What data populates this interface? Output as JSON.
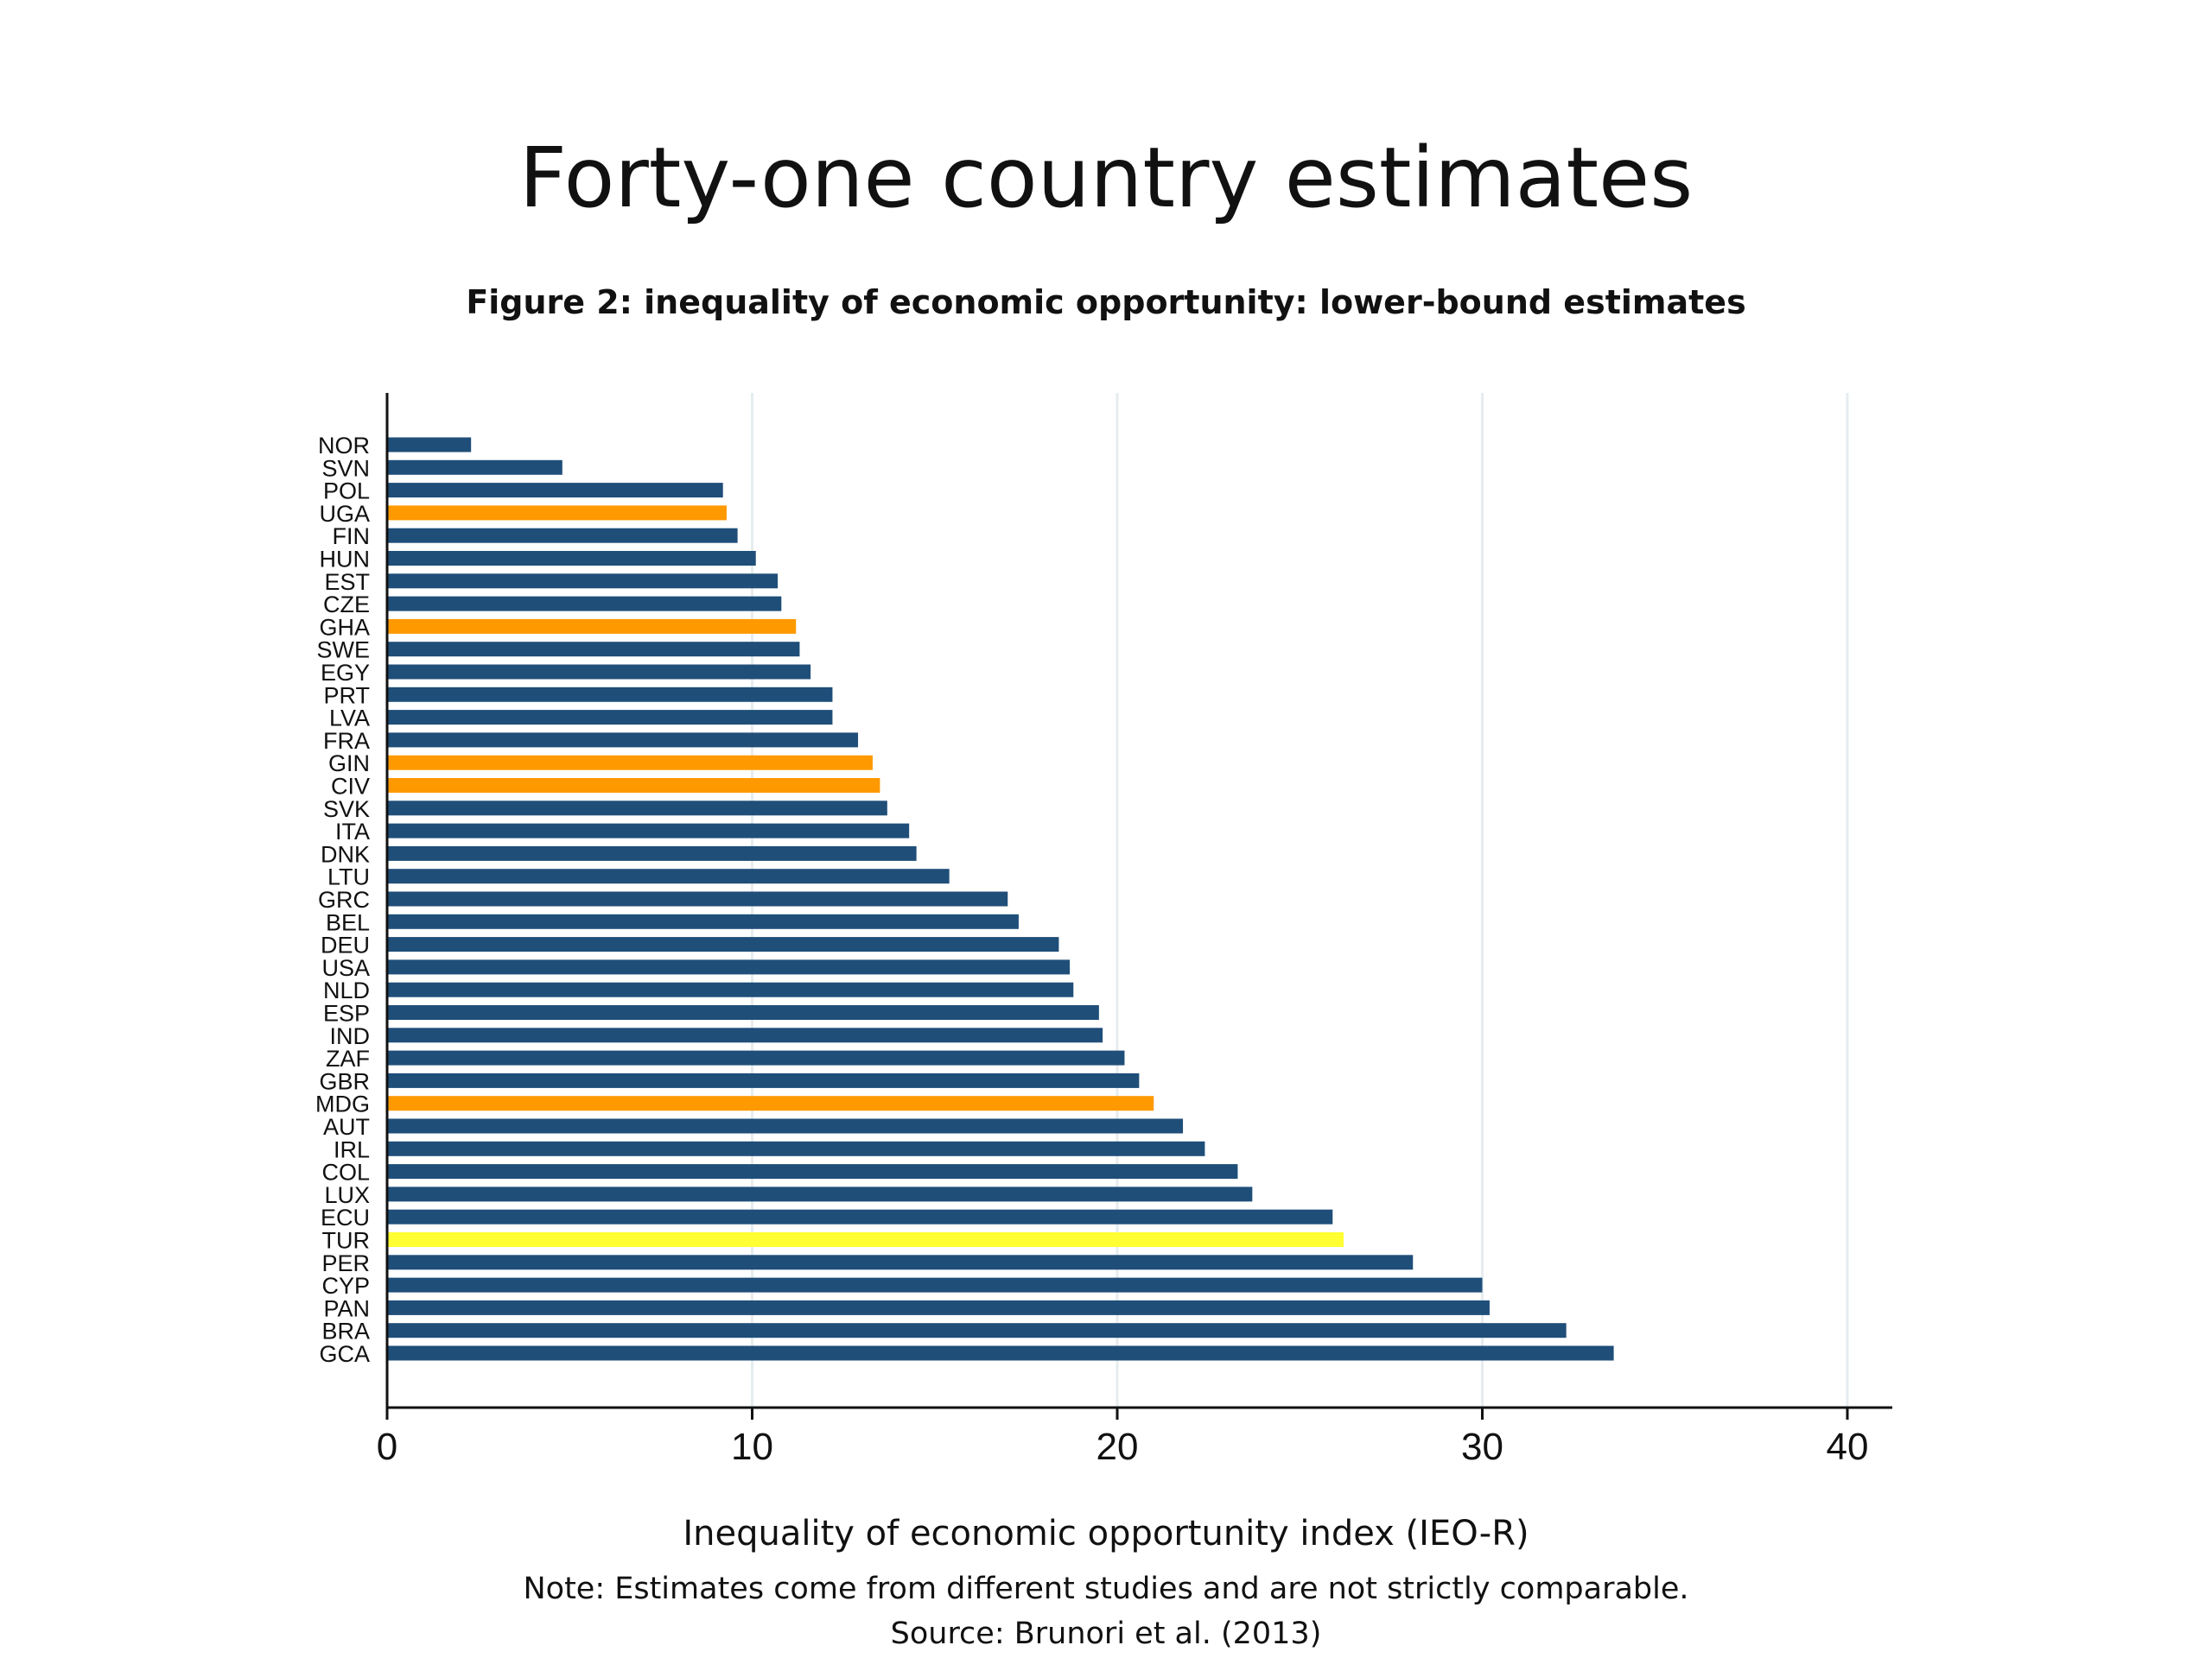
{
  "slide": {
    "title": "Forty-one country estimates",
    "figure_caption": "Figure 2: inequality of economic opportunity: lower-bound estimates",
    "note": "Note: Estimates come from different studies and are not strictly comparable.",
    "source": "Source: Brunori et al. (2013)"
  },
  "colors": {
    "default": "#1f4e79",
    "africa": "#ff9900",
    "highlight": "#ffff33"
  },
  "chart_data": {
    "type": "bar",
    "orientation": "horizontal",
    "title": "Figure 2: inequality of economic opportunity: lower-bound estimates",
    "xlabel": "Inequality of economic opportunity index (IEO-R)",
    "ylabel": "",
    "xlim": [
      0,
      40
    ],
    "xticks": [
      0,
      10,
      20,
      30,
      40
    ],
    "grid": "vertical",
    "categories": [
      "NOR",
      "SVN",
      "POL",
      "UGA",
      "FIN",
      "HUN",
      "EST",
      "CZE",
      "GHA",
      "SWE",
      "EGY",
      "PRT",
      "LVA",
      "FRA",
      "GIN",
      "CIV",
      "SVK",
      "ITA",
      "DNK",
      "LTU",
      "GRC",
      "BEL",
      "DEU",
      "USA",
      "NLD",
      "ESP",
      "IND",
      "ZAF",
      "GBR",
      "MDG",
      "AUT",
      "IRL",
      "COL",
      "LUX",
      "ECU",
      "TUR",
      "PER",
      "CYP",
      "PAN",
      "BRA",
      "GCA"
    ],
    "values": [
      2.3,
      4.8,
      9.2,
      9.3,
      9.6,
      10.1,
      10.7,
      10.8,
      11.2,
      11.3,
      11.6,
      12.2,
      12.2,
      12.9,
      13.3,
      13.5,
      13.7,
      14.3,
      14.5,
      15.4,
      17.0,
      17.3,
      18.4,
      18.7,
      18.8,
      19.5,
      19.6,
      20.2,
      20.6,
      21.0,
      21.8,
      22.4,
      23.3,
      23.7,
      25.9,
      26.2,
      28.1,
      30.0,
      30.2,
      32.3,
      33.6
    ],
    "groups": [
      "default",
      "default",
      "default",
      "africa",
      "default",
      "default",
      "default",
      "default",
      "africa",
      "default",
      "default",
      "default",
      "default",
      "default",
      "africa",
      "africa",
      "default",
      "default",
      "default",
      "default",
      "default",
      "default",
      "default",
      "default",
      "default",
      "default",
      "default",
      "default",
      "default",
      "africa",
      "default",
      "default",
      "default",
      "default",
      "default",
      "highlight",
      "default",
      "default",
      "default",
      "default",
      "default"
    ]
  }
}
